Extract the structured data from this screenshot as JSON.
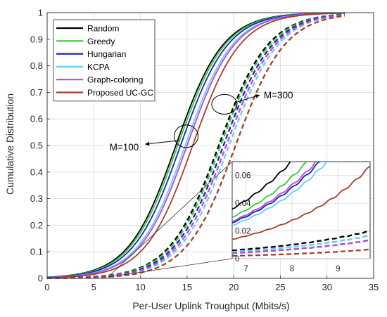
{
  "chart_data": {
    "type": "line",
    "xlabel": "Per-User Uplink Troughput (Mbits/s)",
    "ylabel": "Cumulative Distribution",
    "xlim": [
      0,
      35
    ],
    "ylim": [
      0,
      1
    ],
    "x_ticks": [
      "0",
      "5",
      "10",
      "15",
      "20",
      "25",
      "30",
      "35"
    ],
    "y_ticks": [
      "0",
      "0.1",
      "0.2",
      "0.3",
      "0.4",
      "0.5",
      "0.6",
      "0.7",
      "0.8",
      "0.9",
      "1"
    ],
    "grid": true,
    "legend_position": "top-left",
    "series": [
      {
        "name": "Random",
        "color": "#000000"
      },
      {
        "name": "Greedy",
        "color": "#33cc33"
      },
      {
        "name": "Hungarian",
        "color": "#1f1fbf"
      },
      {
        "name": "KCPA",
        "color": "#66ccff"
      },
      {
        "name": "Graph-coloring",
        "color": "#b34ddb"
      },
      {
        "name": "Proposed UC-GC",
        "color": "#a63d29"
      }
    ],
    "medians": {
      "M=100": {
        "Random": 13.8,
        "Greedy": 14.0,
        "Hungarian": 14.3,
        "KCPA": 14.8,
        "Graph-coloring": 15.0,
        "Proposed UC-GC": 15.6
      },
      "M=300": {
        "Random": 18.4,
        "Greedy": 18.6,
        "Hungarian": 18.9,
        "KCPA": 19.5,
        "Graph-coloring": 19.2,
        "Proposed UC-GC": 20.2
      }
    },
    "annotations": [
      {
        "text": "M=100",
        "x": 10.0,
        "y": 0.495
      },
      {
        "text": "M=300",
        "x": 23.0,
        "y": 0.69
      }
    ],
    "inset": {
      "xlim": [
        6.7,
        9.7
      ],
      "ylim": [
        0,
        0.07
      ],
      "x_ticks": [
        "7",
        "8",
        "9"
      ],
      "y_ticks": [
        "0",
        "0.02",
        "0.04",
        "0.06"
      ],
      "values_at_x_6_7": {
        "M=100": {
          "Random": 0.036,
          "Greedy": 0.03,
          "Hungarian": 0.026,
          "KCPA": 0.024,
          "Graph-coloring": 0.027,
          "Proposed UC-GC": 0.014
        },
        "M=300": {
          "Random": 0.006,
          "Greedy": 0.005,
          "Hungarian": 0.004,
          "KCPA": 0.005,
          "Graph-coloring": 0.004,
          "Proposed UC-GC": 0.002
        }
      }
    }
  }
}
